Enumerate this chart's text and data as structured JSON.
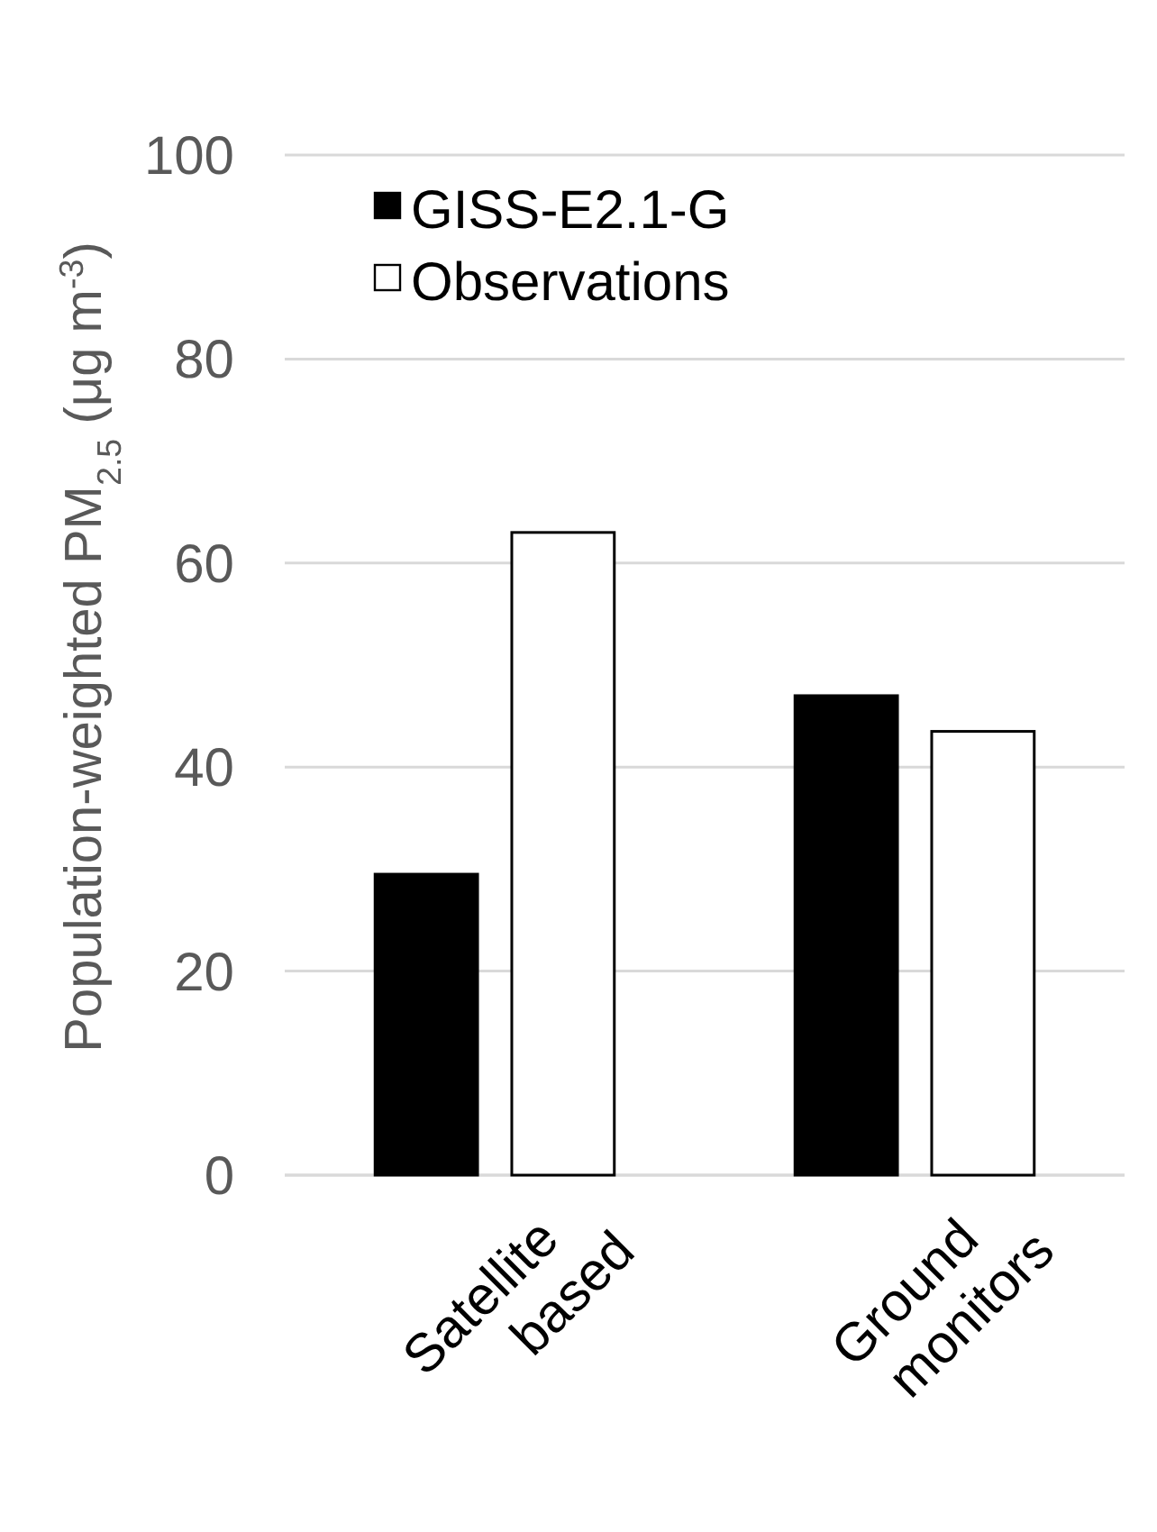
{
  "chart_data": {
    "type": "bar",
    "ylabel": "Population-weighted PM$_{2.5}$ (μg m$^{-3}$)",
    "categories": [
      "Satellite based",
      "Ground monitors"
    ],
    "series": [
      {
        "name": "GISS-E2.1-G",
        "color": "#000000",
        "values": [
          29.5,
          47
        ]
      },
      {
        "name": "Observations",
        "color": "#ffffff",
        "values": [
          63,
          43.5
        ]
      }
    ],
    "ylim": [
      0,
      100
    ],
    "yticks": [
      0,
      20,
      40,
      60,
      80,
      100
    ],
    "grid": "y",
    "legend": "top left"
  }
}
